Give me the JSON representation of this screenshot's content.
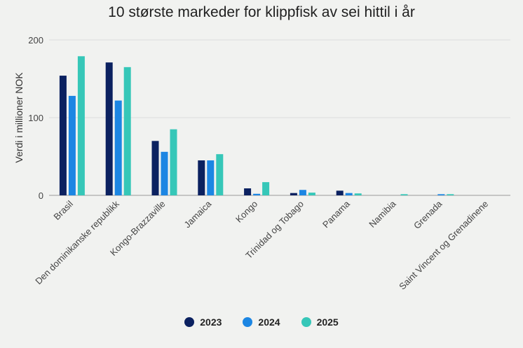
{
  "chart_data": {
    "type": "bar",
    "title": "10 største markeder for klippfisk av sei hittil i år",
    "xlabel": "",
    "ylabel": "Verdi i millioner NOK",
    "ylim": [
      0,
      200
    ],
    "yticks": [
      0,
      100,
      200
    ],
    "categories": [
      "Brasil",
      "Den dominikanske republikk",
      "Kongo-Brazzaville",
      "Jamaica",
      "Kongo",
      "Trinidad og Tobago",
      "Panama",
      "Namibia",
      "Grenada",
      "Saint Vincent og Grenadinene"
    ],
    "series": [
      {
        "name": "2023",
        "color": "#0b2160",
        "values": [
          154,
          171,
          70,
          45,
          9,
          3,
          6,
          0,
          0,
          0
        ]
      },
      {
        "name": "2024",
        "color": "#1c86e3",
        "values": [
          128,
          122,
          56,
          45,
          2,
          7,
          3,
          0,
          1.5,
          0
        ]
      },
      {
        "name": "2025",
        "color": "#36c7b8",
        "values": [
          179,
          165,
          85,
          53,
          17,
          3.5,
          2.5,
          1.5,
          1.5,
          0
        ]
      }
    ],
    "legend": "bottom-center",
    "grid": true
  }
}
